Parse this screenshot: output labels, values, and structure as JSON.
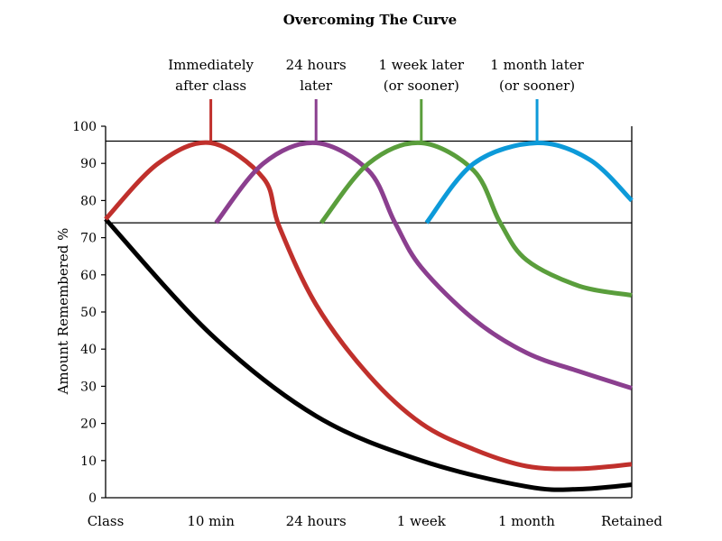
{
  "chart_data": {
    "type": "line",
    "title": "Overcoming The Curve",
    "xlabel": "",
    "ylabel": "Amount Remembered %",
    "categories": [
      "Class",
      "10 min",
      "24 hours",
      "1 week",
      "1 month",
      "Retained"
    ],
    "ylim": [
      0,
      100
    ],
    "yticks": [
      0,
      10,
      20,
      30,
      40,
      50,
      60,
      70,
      80,
      90,
      100
    ],
    "grid": false,
    "reference_lines": [
      96,
      74
    ],
    "annotations": [
      {
        "lines": [
          "Immediately",
          "after class"
        ],
        "color": "#c0302c",
        "peak": {
          "x": 1.0,
          "y": 96
        }
      },
      {
        "lines": [
          "24 hours",
          "later"
        ],
        "color": "#8b3f8f",
        "peak": {
          "x": 2.0,
          "y": 96
        }
      },
      {
        "lines": [
          "1 week later",
          "(or sooner)"
        ],
        "color": "#5a9e3c",
        "peak": {
          "x": 3.0,
          "y": 96
        }
      },
      {
        "lines": [
          "1 month later",
          "(or sooner)"
        ],
        "color": "#0d9ad9",
        "peak": {
          "x": 4.1,
          "y": 96
        }
      }
    ],
    "series": [
      {
        "color": "#000000",
        "points": [
          [
            0,
            75
          ],
          [
            1,
            44
          ],
          [
            2,
            22
          ],
          [
            3,
            10
          ],
          [
            4,
            3
          ],
          [
            4.5,
            2.3
          ],
          [
            5,
            3.5
          ]
        ]
      },
      {
        "color": "#c0302c",
        "points": [
          [
            0,
            75
          ],
          [
            0.5,
            90
          ],
          [
            1,
            95.5
          ],
          [
            1.5,
            86
          ],
          [
            1.65,
            73
          ],
          [
            2,
            52
          ],
          [
            2.5,
            33
          ],
          [
            3,
            20
          ],
          [
            3.5,
            13
          ],
          [
            4,
            8.5
          ],
          [
            4.5,
            7.8
          ],
          [
            5,
            9
          ]
        ]
      },
      {
        "color": "#8b3f8f",
        "points": [
          [
            1.05,
            74
          ],
          [
            1.5,
            90
          ],
          [
            2,
            95.5
          ],
          [
            2.5,
            88
          ],
          [
            2.75,
            74
          ],
          [
            3,
            62
          ],
          [
            3.5,
            48
          ],
          [
            4,
            39
          ],
          [
            4.5,
            34
          ],
          [
            5,
            29.5
          ]
        ]
      },
      {
        "color": "#5a9e3c",
        "points": [
          [
            2.05,
            74
          ],
          [
            2.5,
            90
          ],
          [
            3,
            95.5
          ],
          [
            3.5,
            88
          ],
          [
            3.75,
            74
          ],
          [
            4,
            64
          ],
          [
            4.5,
            57
          ],
          [
            5,
            54.5
          ]
        ]
      },
      {
        "color": "#0d9ad9",
        "points": [
          [
            3.05,
            74
          ],
          [
            3.5,
            90
          ],
          [
            4.1,
            95.5
          ],
          [
            4.6,
            91
          ],
          [
            5,
            80
          ]
        ]
      }
    ]
  }
}
